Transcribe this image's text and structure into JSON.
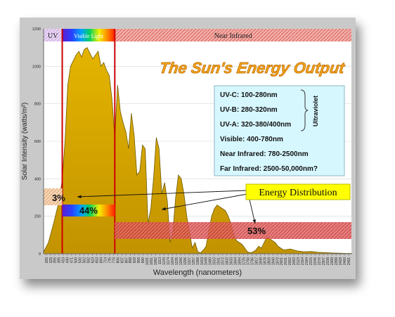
{
  "chart_data": {
    "type": "area",
    "title": "The Sun's Energy Output",
    "xlabel": "Wavelength (nanometers)",
    "ylabel": "Solar Intensity (watts/m²)",
    "ylim": [
      0,
      1200
    ],
    "yticks": [
      0,
      200,
      400,
      600,
      800,
      1000,
      1200
    ],
    "xticks": [
      "265",
      "325",
      "355",
      "385",
      "410",
      "440",
      "471",
      "500",
      "530",
      "562",
      "592",
      "623",
      "653",
      "684",
      "714",
      "745",
      "776",
      "806",
      "837",
      "867",
      "898",
      "929",
      "959",
      "990",
      "1021",
      "1051",
      "1082",
      "1113",
      "1143",
      "1174",
      "1204",
      "1235",
      "1266",
      "1296",
      "1327",
      "1357",
      "1388",
      "1419",
      "1449",
      "1480",
      "1510",
      "1541",
      "1572",
      "1602",
      "1633",
      "1664",
      "1694",
      "1725",
      "1756",
      "1786",
      "1817",
      "1848",
      "1878",
      "1909",
      "1940",
      "1970",
      "2001",
      "2031",
      "2062",
      "2093",
      "2123",
      "2154",
      "2184",
      "2215",
      "2246",
      "2276",
      "2307",
      "2338",
      "2368",
      "2399",
      "2429",
      "2460",
      "2491"
    ],
    "series": [
      {
        "x": [
          265,
          300,
          340,
          380,
          400,
          420,
          440,
          460,
          480,
          500,
          520,
          540,
          560,
          580,
          600,
          620,
          640,
          660,
          680,
          700,
          720,
          740,
          760,
          780,
          800,
          820,
          840,
          860,
          880,
          900,
          920,
          940,
          960,
          980,
          1000,
          1020,
          1040,
          1060,
          1080,
          1100,
          1120,
          1140,
          1160,
          1180,
          1200,
          1220,
          1240,
          1260,
          1280,
          1300,
          1320,
          1340,
          1360,
          1380,
          1400,
          1420,
          1440,
          1460,
          1480,
          1500,
          1520,
          1540,
          1560,
          1580,
          1600,
          1620,
          1640,
          1660,
          1680,
          1700,
          1720,
          1740,
          1760,
          1780,
          1800,
          1820,
          1840,
          1860,
          1880,
          1900,
          1920,
          1940,
          1960,
          1980,
          2000,
          2050,
          2100,
          2150,
          2200,
          2250,
          2300,
          2350,
          2400,
          2450,
          2491
        ],
        "y": [
          10,
          60,
          170,
          290,
          400,
          600,
          900,
          1000,
          1030,
          1060,
          1080,
          1050,
          1090,
          1100,
          1070,
          1040,
          1060,
          1080,
          1000,
          1020,
          980,
          950,
          820,
          620,
          900,
          760,
          700,
          650,
          560,
          750,
          630,
          420,
          440,
          580,
          560,
          160,
          240,
          400,
          620,
          560,
          320,
          380,
          280,
          60,
          120,
          300,
          420,
          400,
          320,
          200,
          120,
          30,
          60,
          10,
          5,
          20,
          40,
          120,
          200,
          240,
          260,
          250,
          240,
          230,
          200,
          160,
          100,
          70,
          60,
          50,
          30,
          10,
          5,
          10,
          20,
          40,
          30,
          60,
          90,
          80,
          70,
          60,
          40,
          30,
          20,
          25,
          15,
          10,
          12,
          8,
          6,
          4,
          3,
          2,
          2
        ]
      }
    ],
    "regions": [
      {
        "label": "UV",
        "from": 265,
        "to": 400
      },
      {
        "label": "Visible Light",
        "from": 400,
        "to": 780
      },
      {
        "label": "Near Infrared",
        "from": 780,
        "to": 2491
      }
    ],
    "distribution_label": "Energy Distribution",
    "distribution": [
      {
        "label": "3%",
        "value": 3
      },
      {
        "label": "44%",
        "value": 44
      },
      {
        "label": "53%",
        "value": 53
      }
    ],
    "legend_lines": [
      "UV-C: 100-280nm",
      "UV-B: 280-320nm",
      "UV-A: 320-380/400nm",
      "Visible: 400-780nm",
      "Near Infrared: 780-2500nm",
      "Far Infrared: 2500-50,000nm?"
    ],
    "legend_side_label": "Ultraviolet",
    "colors": {
      "plot_bg": "#ffffff",
      "area_fill": "#d8a900",
      "area_stroke": "#6d5a00",
      "region_line": "#cc0000",
      "legend_bg": "#d7f7ff",
      "title_color": "#f3a21a",
      "energy_box": "#ffff00"
    }
  }
}
